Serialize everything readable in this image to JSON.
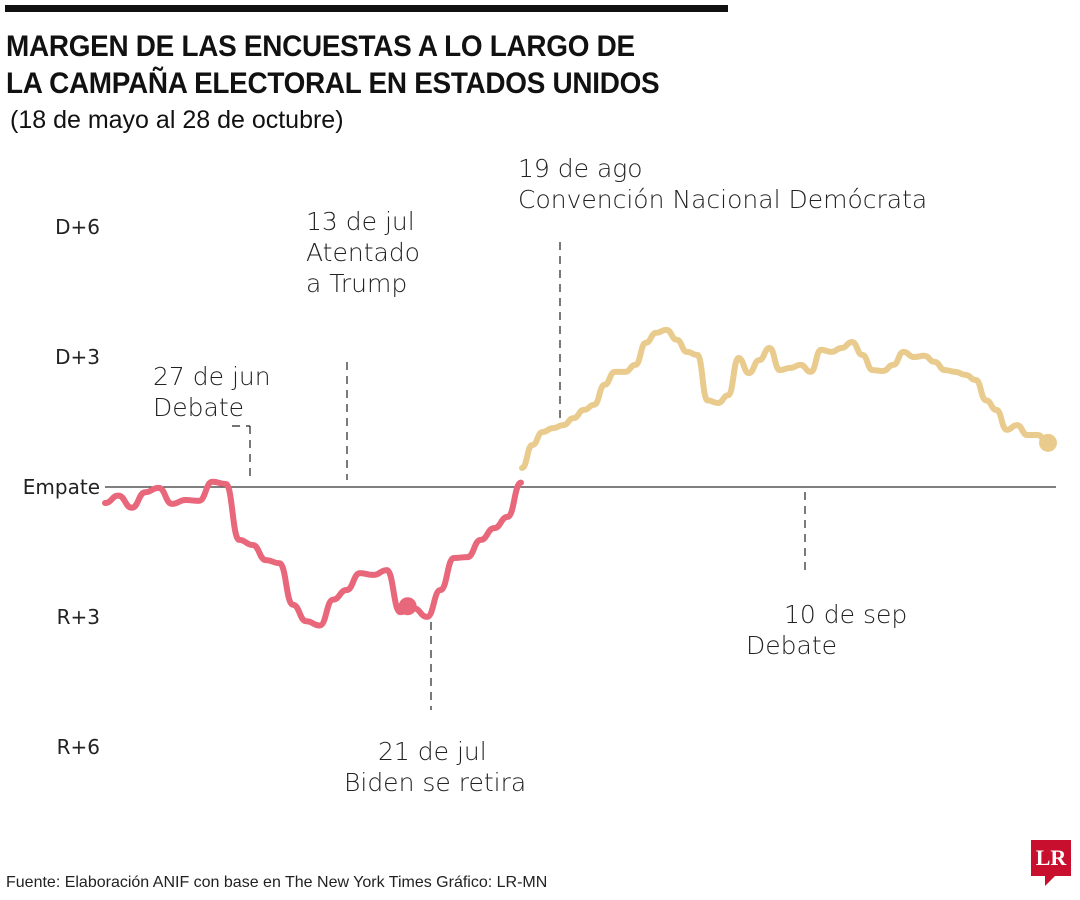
{
  "title_lines": [
    "MARGEN DE LAS ENCUESTAS A LO LARGO DE",
    "LA CAMPAÑA ELECTORAL EN ESTADOS UNIDOS"
  ],
  "subtitle": "(18 de mayo al 28 de octubre)",
  "source": "Fuente: Elaboración ANIF con base en The New York Times   Gráfico: LR-MN",
  "logo": "LR",
  "chart_data": {
    "type": "line",
    "title": "MARGEN DE LAS ENCUESTAS A LO LARGO DE LA CAMPAÑA ELECTORAL EN ESTADOS UNIDOS",
    "subtitle": "(18 de mayo al 28 de octubre)",
    "ylim": [
      -6,
      6
    ],
    "y_ticks": [
      {
        "value": 6,
        "label": "D+6"
      },
      {
        "value": 3,
        "label": "D+3"
      },
      {
        "value": 0,
        "label": "Empate"
      },
      {
        "value": -3,
        "label": "R+3"
      },
      {
        "value": -6,
        "label": "R+6"
      }
    ],
    "grid": false,
    "colors": {
      "red": "#e8677a",
      "gold": "#e9cb8e",
      "axis": "#333333"
    },
    "series": [
      {
        "color": "#e8677a",
        "end_marker": false,
        "values": [
          -0.37,
          -0.2,
          -0.48,
          -0.12,
          -0.02,
          -0.39,
          -0.3,
          -0.32,
          0.12,
          0.07,
          -1.22,
          -1.34,
          -1.69,
          -1.76,
          -2.72,
          -3.1,
          -3.2,
          -2.6,
          -2.38,
          -1.99,
          -2.03,
          -1.92,
          -2.89,
          -2.8,
          -3.0,
          -2.38,
          -1.64,
          -1.62,
          -1.22,
          -0.95,
          -0.69,
          0.1
        ]
      },
      {
        "color": "#e9cb8e",
        "end_marker": true,
        "values": [
          0.44,
          0.97,
          1.27,
          1.36,
          1.43,
          1.59,
          1.78,
          1.9,
          2.36,
          2.66,
          2.66,
          2.82,
          3.33,
          3.56,
          3.63,
          3.4,
          3.12,
          3.05,
          2.0,
          1.94,
          2.12,
          2.98,
          2.63,
          2.93,
          3.21,
          2.7,
          2.75,
          2.82,
          2.66,
          3.17,
          3.12,
          3.21,
          3.35,
          3.05,
          2.7,
          2.68,
          2.82,
          3.12,
          3.0,
          3.03,
          2.89,
          2.7,
          2.66,
          2.59,
          2.47,
          2.0,
          1.78,
          1.32,
          1.43,
          1.2,
          1.2,
          1.02
        ]
      }
    ],
    "markers": [
      {
        "series": 0,
        "index": 23,
        "label": "21 de jul"
      }
    ],
    "annotations": [
      {
        "lines": [
          "27 de jun",
          "Debate"
        ],
        "position": "above"
      },
      {
        "lines": [
          "13 de jul",
          "Atentado",
          "a Trump"
        ],
        "position": "above"
      },
      {
        "lines": [
          "21 de jul",
          "Biden se retira"
        ],
        "position": "below"
      },
      {
        "lines": [
          "19 de ago",
          "Convención Nacional Demócrata"
        ],
        "position": "above"
      },
      {
        "lines": [
          "10 de sep",
          "Debate"
        ],
        "position": "below"
      }
    ]
  }
}
